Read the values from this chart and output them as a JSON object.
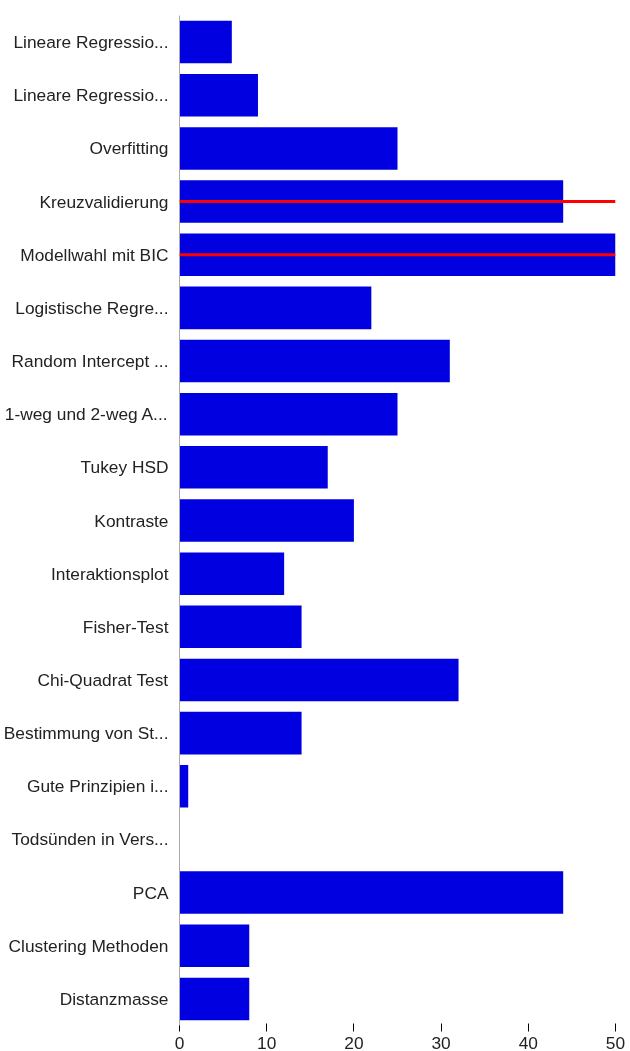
{
  "chart_data": {
    "type": "bar",
    "orientation": "horizontal",
    "categories": [
      "Lineare Regressio...",
      "Lineare Regressio...",
      "Overfitting",
      "Kreuzvalidierung",
      "Modellwahl mit BIC",
      "Logistische Regre...",
      "Random Intercept ...",
      "1-weg und 2-weg A...",
      "Tukey HSD",
      "Kontraste",
      "Interaktionsplot",
      "Fisher-Test",
      "Chi-Quadrat Test",
      "Bestimmung von St...",
      "Gute Prinzipien i...",
      "Todsünden in Vers...",
      "PCA",
      "Clustering Methoden",
      "Distanzmasse"
    ],
    "values": [
      6,
      9,
      25,
      44,
      50,
      22,
      31,
      25,
      17,
      20,
      12,
      14,
      32,
      14,
      1,
      0,
      44,
      8,
      8
    ],
    "color": "#0000e0",
    "xlim": [
      0,
      50
    ],
    "xticks": [
      0,
      10,
      20,
      30,
      40,
      50
    ],
    "grid": false,
    "ref_lines": [
      {
        "axis": "y",
        "value": "Kreuzvalidierung",
        "color": "#ff0000"
      },
      {
        "axis": "y",
        "value": "Modellwahl mit BIC",
        "color": "#ff0000"
      }
    ]
  }
}
